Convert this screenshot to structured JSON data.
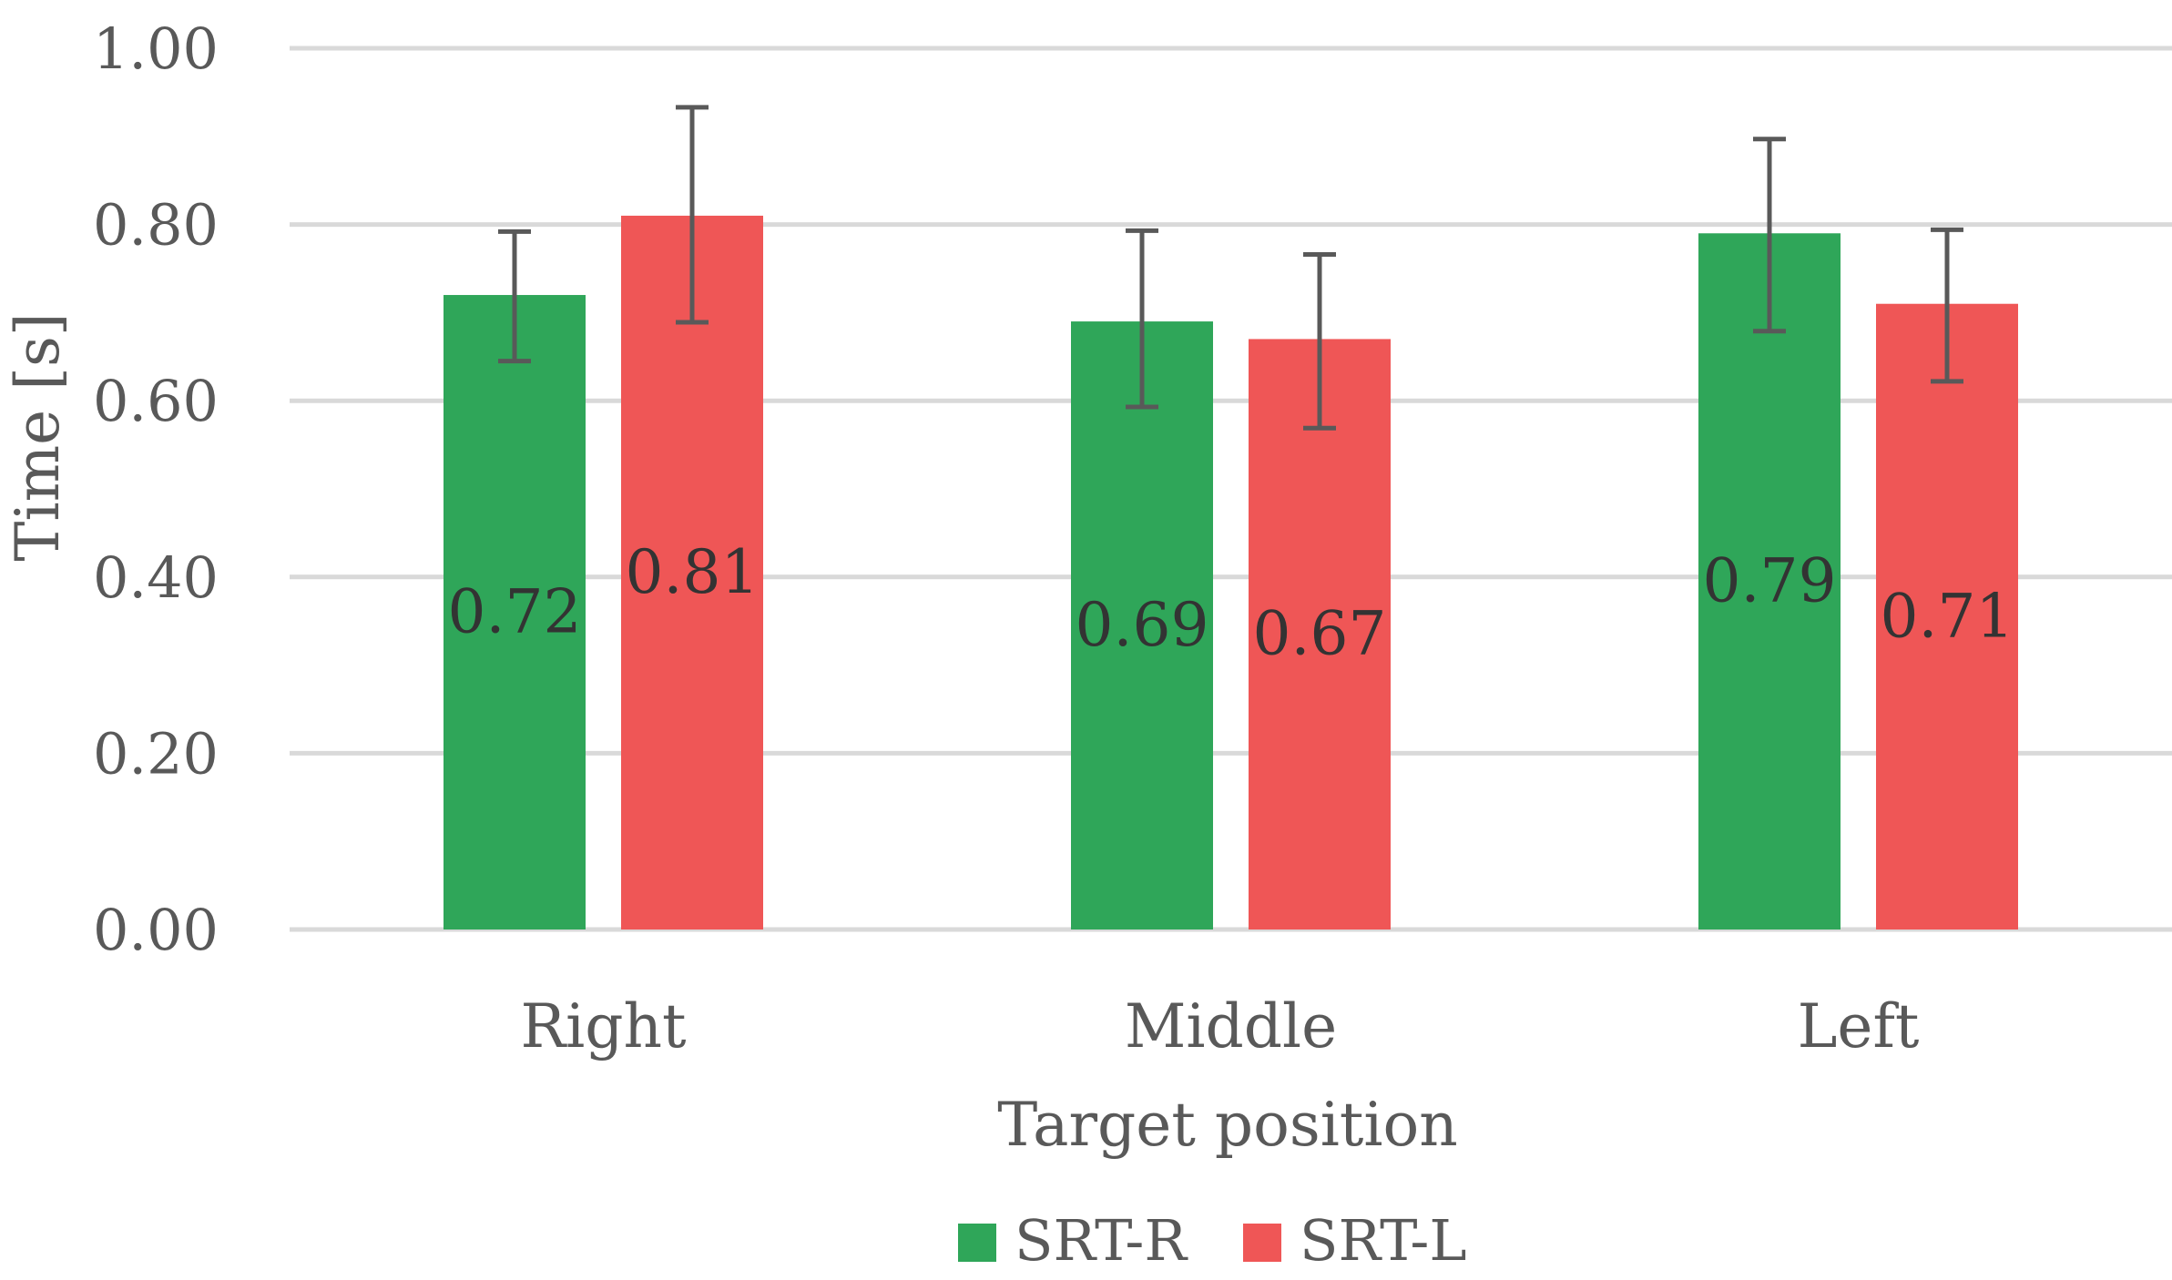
{
  "chart_data": {
    "type": "bar",
    "categories": [
      "Right",
      "Middle",
      "Left"
    ],
    "series": [
      {
        "name": "SRT-R",
        "color": "#2fa659",
        "values": [
          0.72,
          0.69,
          0.79
        ],
        "err_low": [
          0.645,
          0.593,
          0.679
        ],
        "err_high": [
          0.792,
          0.793,
          0.897
        ]
      },
      {
        "name": "SRT-L",
        "color": "#ef5656",
        "values": [
          0.81,
          0.67,
          0.71
        ],
        "err_low": [
          0.689,
          0.569,
          0.622
        ],
        "err_high": [
          0.933,
          0.766,
          0.794
        ]
      }
    ],
    "data_labels": [
      [
        "0.72",
        "0.69",
        "0.79"
      ],
      [
        "0.81",
        "0.67",
        "0.71"
      ]
    ],
    "yticks": [
      "0.00",
      "0.20",
      "0.40",
      "0.60",
      "0.80",
      "1.00"
    ],
    "ylim": [
      0,
      1.0
    ],
    "xlabel": "Target position",
    "ylabel": "Time [s]",
    "grid": true,
    "legend_position": "bottom-center",
    "gridline_color": "#d9d9d9",
    "text_color": "#595959",
    "error_bar_color": "#595959"
  }
}
